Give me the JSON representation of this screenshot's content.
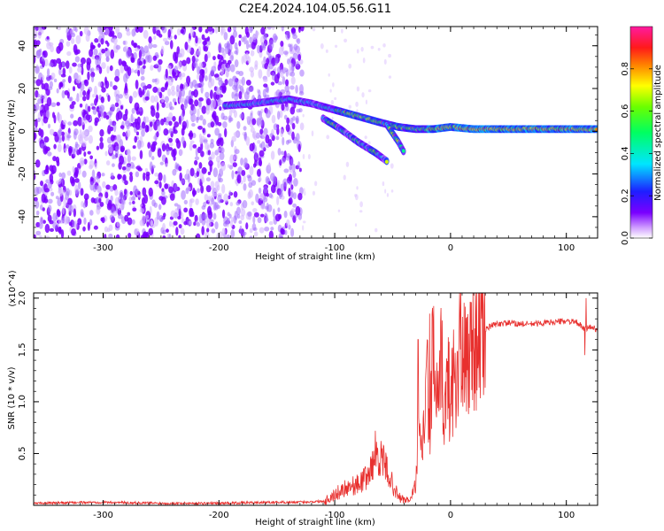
{
  "title": "C2E4.2024.104.05.56.G11",
  "colors": {
    "snr_line": "#e8302e",
    "spectrogram_noise": "#8a2be2",
    "background": "#ffffff"
  },
  "chart_data": [
    {
      "type": "heatmap",
      "xlabel": "Height of straight line (km)",
      "ylabel": "Frequency (Hz)",
      "xlim": [
        -360,
        127
      ],
      "ylim": [
        -50,
        49
      ],
      "xticks": [
        -300,
        -200,
        -100,
        0,
        100
      ],
      "yticks": [
        -40,
        -20,
        0,
        20,
        40
      ],
      "grid": false,
      "colorbar": {
        "label": "Normalized spectral amplitude",
        "range": [
          0.0,
          1.0
        ],
        "ticks": [
          0.0,
          0.2,
          0.4,
          0.6,
          0.8
        ],
        "colormap": "rainbow (white-violet-blue-cyan-green-yellow-red-magenta)"
      },
      "ridges": [
        {
          "x": [
            -195,
            -170,
            -140,
            -120,
            -100,
            -80,
            -60,
            -45,
            -30,
            -15,
            0,
            20,
            50,
            80,
            100,
            127
          ],
          "freq": [
            12,
            13,
            15,
            13,
            10,
            7,
            4,
            2,
            1,
            1,
            2,
            1,
            1,
            1,
            1,
            1
          ]
        },
        {
          "x": [
            -110,
            -95,
            -80,
            -65,
            -55
          ],
          "freq": [
            6,
            1,
            -5,
            -10,
            -14
          ]
        },
        {
          "x": [
            -55,
            -45,
            -40
          ],
          "freq": [
            3,
            -5,
            -10
          ]
        }
      ]
    },
    {
      "type": "line",
      "xlabel": "Height of straight line (km)",
      "ylabel": "SNR (10 * v/v)",
      "y_multiplier": "(x10^4)",
      "xlim": [
        -360,
        127
      ],
      "ylim": [
        0,
        2.05
      ],
      "xticks": [
        -300,
        -200,
        -100,
        0,
        100
      ],
      "yticks": [
        0.5,
        1.0,
        1.5,
        2.0
      ],
      "grid": false,
      "series": [
        {
          "x": [
            -360,
            -300,
            -250,
            -200,
            -150,
            -130,
            -110,
            -100,
            -90,
            -80,
            -70,
            -65,
            -60,
            -55,
            -50,
            -45,
            -40,
            -35,
            -30,
            -28,
            -25,
            -22,
            -20,
            -18,
            -15,
            -12,
            -10,
            -8,
            -5,
            -2,
            0,
            3,
            5,
            8,
            10,
            15,
            20,
            25,
            30,
            35,
            40,
            50,
            60,
            70,
            80,
            90,
            100,
            110,
            115,
            120,
            127
          ],
          "y": [
            0.02,
            0.03,
            0.02,
            0.02,
            0.03,
            0.03,
            0.04,
            0.1,
            0.18,
            0.2,
            0.3,
            0.5,
            0.45,
            0.35,
            0.2,
            0.08,
            0.05,
            0.05,
            0.2,
            0.65,
            0.5,
            0.9,
            1.2,
            0.8,
            1.5,
            1.0,
            0.9,
            1.4,
            0.9,
            1.2,
            1.0,
            1.3,
            1.15,
            1.6,
            1.3,
            1.45,
            1.6,
            1.68,
            1.7,
            1.73,
            1.75,
            1.76,
            1.75,
            1.75,
            1.76,
            1.77,
            1.78,
            1.76,
            1.7,
            1.72,
            1.7
          ]
        }
      ],
      "spikes": [
        {
          "x": -65,
          "y": 0.72
        },
        {
          "x": -28,
          "y": 1.6
        },
        {
          "x": -18,
          "y": 1.85
        },
        {
          "x": 8,
          "y": 2.05
        },
        {
          "x": 116,
          "y": 1.45
        },
        {
          "x": 117,
          "y": 2.0
        }
      ]
    }
  ]
}
